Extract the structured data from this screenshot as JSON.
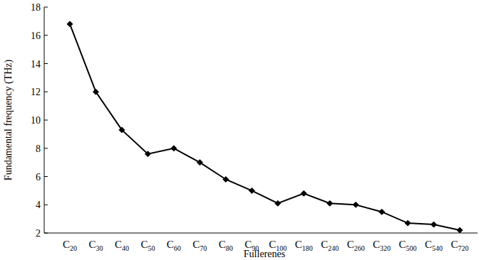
{
  "chart_data": {
    "type": "line",
    "x_label": "Fullerenes",
    "y_label": "Fundamental frequency (THz)",
    "categories": [
      "C20",
      "C30",
      "C40",
      "C50",
      "C60",
      "C70",
      "C80",
      "C90",
      "C100",
      "C180",
      "C240",
      "C260",
      "C320",
      "C500",
      "C540",
      "C720"
    ],
    "values": [
      16.8,
      12.0,
      9.3,
      7.6,
      8.0,
      7.0,
      5.8,
      5.0,
      4.1,
      4.8,
      4.1,
      4.0,
      3.5,
      2.7,
      2.6,
      2.2
    ],
    "color": "#000000",
    "marker": "diamond",
    "ylim": [
      2,
      18
    ],
    "yticks": [
      2,
      4,
      6,
      8,
      10,
      12,
      14,
      16,
      18
    ],
    "grid": false
  }
}
